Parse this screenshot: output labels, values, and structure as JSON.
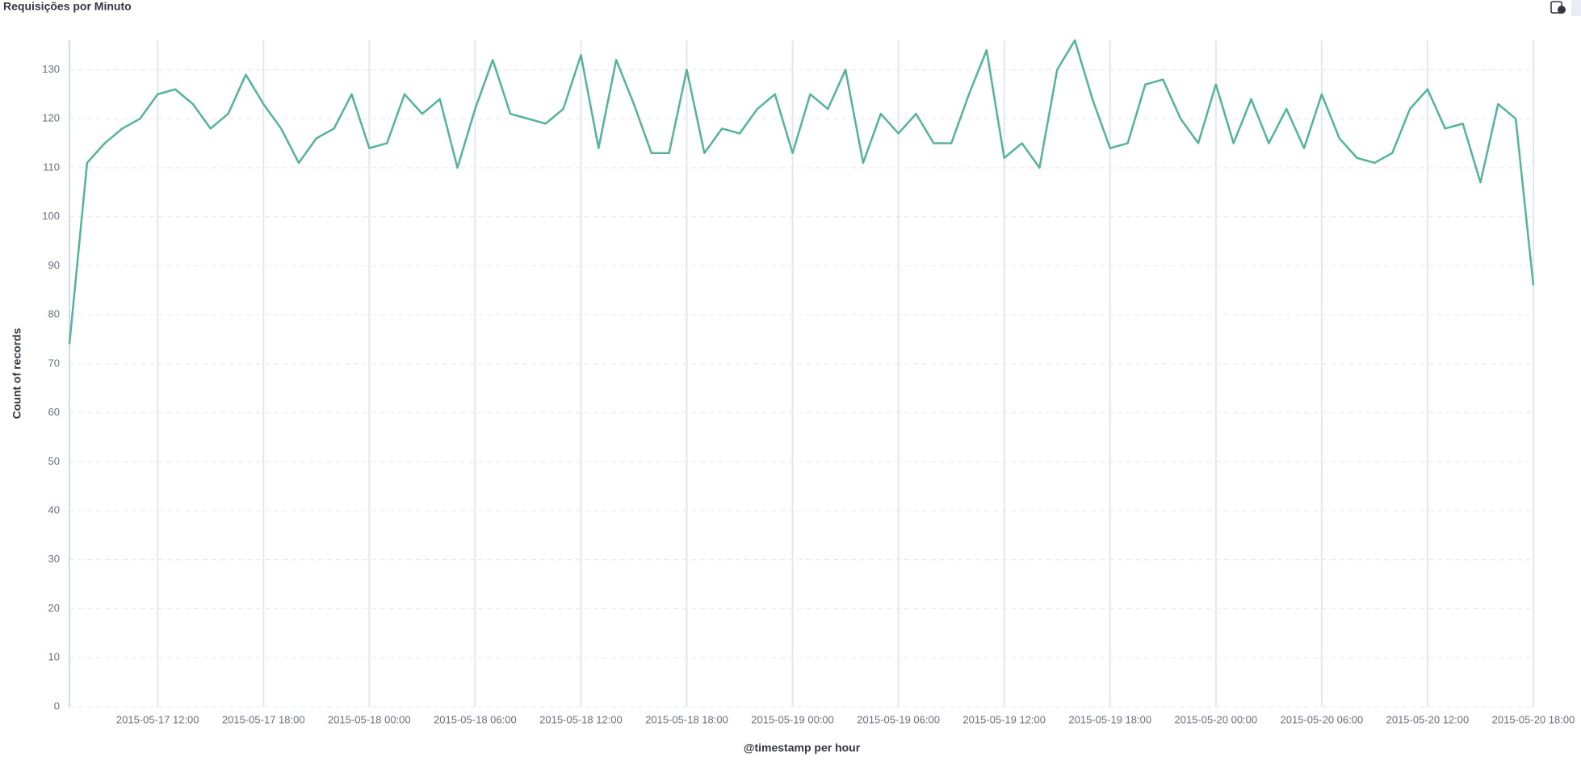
{
  "chart_data": {
    "type": "line",
    "title": "Requisições por Minuto",
    "x_label": "@timestamp per hour",
    "y_label": "Count of records",
    "x": [
      "2015-05-17 07:00",
      "2015-05-17 08:00",
      "2015-05-17 09:00",
      "2015-05-17 10:00",
      "2015-05-17 11:00",
      "2015-05-17 12:00",
      "2015-05-17 13:00",
      "2015-05-17 14:00",
      "2015-05-17 15:00",
      "2015-05-17 16:00",
      "2015-05-17 17:00",
      "2015-05-17 18:00",
      "2015-05-17 19:00",
      "2015-05-17 20:00",
      "2015-05-17 21:00",
      "2015-05-17 22:00",
      "2015-05-17 23:00",
      "2015-05-18 00:00",
      "2015-05-18 01:00",
      "2015-05-18 02:00",
      "2015-05-18 03:00",
      "2015-05-18 04:00",
      "2015-05-18 05:00",
      "2015-05-18 06:00",
      "2015-05-18 07:00",
      "2015-05-18 08:00",
      "2015-05-18 09:00",
      "2015-05-18 10:00",
      "2015-05-18 11:00",
      "2015-05-18 12:00",
      "2015-05-18 13:00",
      "2015-05-18 14:00",
      "2015-05-18 15:00",
      "2015-05-18 16:00",
      "2015-05-18 17:00",
      "2015-05-18 18:00",
      "2015-05-18 19:00",
      "2015-05-18 20:00",
      "2015-05-18 21:00",
      "2015-05-18 22:00",
      "2015-05-18 23:00",
      "2015-05-19 00:00",
      "2015-05-19 01:00",
      "2015-05-19 02:00",
      "2015-05-19 03:00",
      "2015-05-19 04:00",
      "2015-05-19 05:00",
      "2015-05-19 06:00",
      "2015-05-19 07:00",
      "2015-05-19 08:00",
      "2015-05-19 09:00",
      "2015-05-19 10:00",
      "2015-05-19 11:00",
      "2015-05-19 12:00",
      "2015-05-19 13:00",
      "2015-05-19 14:00",
      "2015-05-19 15:00",
      "2015-05-19 16:00",
      "2015-05-19 17:00",
      "2015-05-19 18:00",
      "2015-05-19 19:00",
      "2015-05-19 20:00",
      "2015-05-19 21:00",
      "2015-05-19 22:00",
      "2015-05-19 23:00",
      "2015-05-20 00:00",
      "2015-05-20 01:00",
      "2015-05-20 02:00",
      "2015-05-20 03:00",
      "2015-05-20 04:00",
      "2015-05-20 05:00",
      "2015-05-20 06:00",
      "2015-05-20 07:00",
      "2015-05-20 08:00",
      "2015-05-20 09:00",
      "2015-05-20 10:00",
      "2015-05-20 11:00",
      "2015-05-20 12:00",
      "2015-05-20 13:00",
      "2015-05-20 14:00",
      "2015-05-20 15:00",
      "2015-05-20 16:00",
      "2015-05-20 17:00",
      "2015-05-20 18:00"
    ],
    "series": [
      {
        "name": "Count of records",
        "color": "#54b399",
        "values": [
          74,
          111,
          115,
          118,
          120,
          125,
          126,
          123,
          118,
          121,
          129,
          123,
          118,
          111,
          116,
          118,
          125,
          114,
          115,
          125,
          121,
          124,
          110,
          122,
          132,
          121,
          120,
          119,
          122,
          133,
          114,
          132,
          123,
          113,
          113,
          130,
          113,
          118,
          117,
          122,
          125,
          113,
          125,
          122,
          130,
          111,
          121,
          117,
          121,
          115,
          115,
          125,
          134,
          112,
          115,
          110,
          130,
          136,
          124,
          114,
          115,
          127,
          128,
          120,
          115,
          127,
          115,
          124,
          115,
          122,
          114,
          125,
          116,
          112,
          111,
          113,
          122,
          126,
          118,
          119,
          107,
          123,
          120,
          86
        ]
      }
    ],
    "xlim": [
      "2015-05-17 07:00",
      "2015-05-20 18:00"
    ],
    "xticks": [
      "2015-05-17 12:00",
      "2015-05-17 18:00",
      "2015-05-18 00:00",
      "2015-05-18 06:00",
      "2015-05-18 12:00",
      "2015-05-18 18:00",
      "2015-05-19 00:00",
      "2015-05-19 06:00",
      "2015-05-19 12:00",
      "2015-05-19 18:00",
      "2015-05-20 00:00",
      "2015-05-20 06:00",
      "2015-05-20 12:00",
      "2015-05-20 18:00"
    ],
    "ylim": [
      0,
      136
    ],
    "yticks": [
      0,
      10,
      20,
      30,
      40,
      50,
      60,
      70,
      80,
      90,
      100,
      110,
      120,
      130
    ],
    "grid": true
  }
}
